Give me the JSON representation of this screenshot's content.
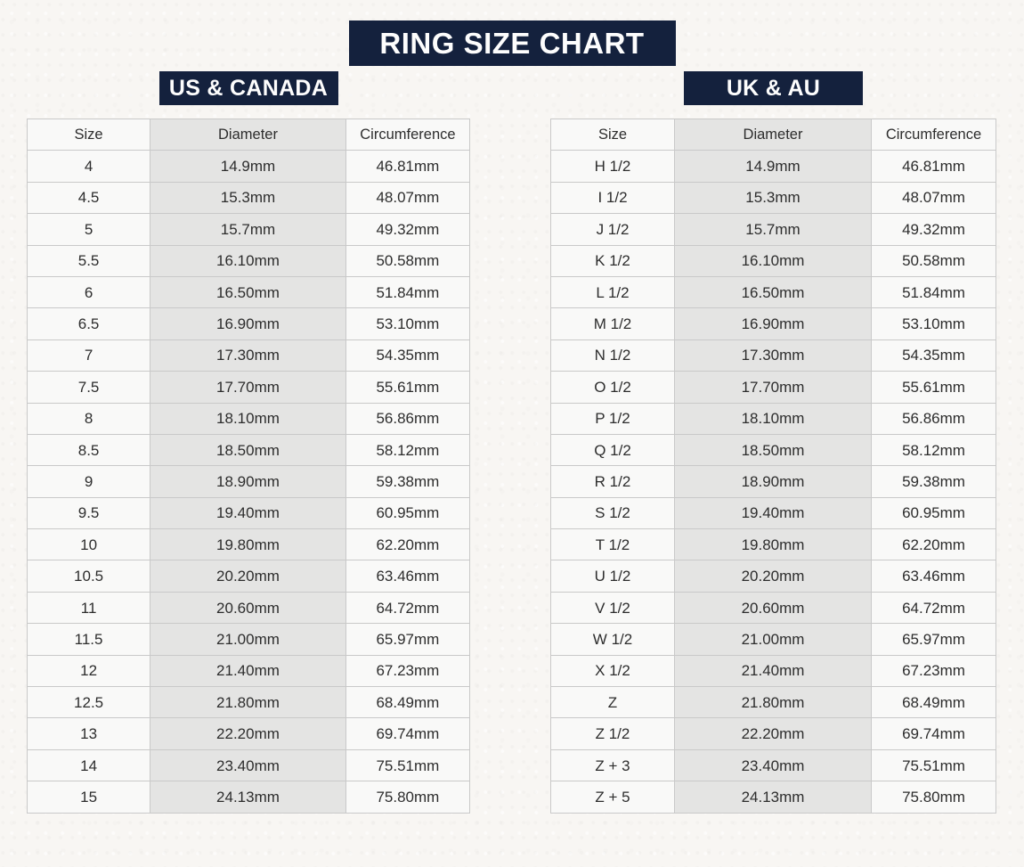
{
  "page": {
    "title": "RING SIZE CHART"
  },
  "theme": {
    "banner_color": "#14213d",
    "banner_text_color": "#fdfdfd",
    "cell_background": "#f9f9f8",
    "diameter_column_background": "#e4e4e3",
    "border_color": "#c9c9c9",
    "text_color": "#2d2d2d",
    "page_background": "#f8f6f3"
  },
  "tables": [
    {
      "region_label": "US & CANADA",
      "columns": [
        "Size",
        "Diameter",
        "Circumference"
      ],
      "rows": [
        [
          "4",
          "14.9mm",
          "46.81mm"
        ],
        [
          "4.5",
          "15.3mm",
          "48.07mm"
        ],
        [
          "5",
          "15.7mm",
          "49.32mm"
        ],
        [
          "5.5",
          "16.10mm",
          "50.58mm"
        ],
        [
          "6",
          "16.50mm",
          "51.84mm"
        ],
        [
          "6.5",
          "16.90mm",
          "53.10mm"
        ],
        [
          "7",
          "17.30mm",
          "54.35mm"
        ],
        [
          "7.5",
          "17.70mm",
          "55.61mm"
        ],
        [
          "8",
          "18.10mm",
          "56.86mm"
        ],
        [
          "8.5",
          "18.50mm",
          "58.12mm"
        ],
        [
          "9",
          "18.90mm",
          "59.38mm"
        ],
        [
          "9.5",
          "19.40mm",
          "60.95mm"
        ],
        [
          "10",
          "19.80mm",
          "62.20mm"
        ],
        [
          "10.5",
          "20.20mm",
          "63.46mm"
        ],
        [
          "11",
          "20.60mm",
          "64.72mm"
        ],
        [
          "11.5",
          "21.00mm",
          "65.97mm"
        ],
        [
          "12",
          "21.40mm",
          "67.23mm"
        ],
        [
          "12.5",
          "21.80mm",
          "68.49mm"
        ],
        [
          "13",
          "22.20mm",
          "69.74mm"
        ],
        [
          "14",
          "23.40mm",
          "75.51mm"
        ],
        [
          "15",
          "24.13mm",
          "75.80mm"
        ]
      ]
    },
    {
      "region_label": "UK & AU",
      "columns": [
        "Size",
        "Diameter",
        "Circumference"
      ],
      "rows": [
        [
          "H 1/2",
          "14.9mm",
          "46.81mm"
        ],
        [
          "I 1/2",
          "15.3mm",
          "48.07mm"
        ],
        [
          "J 1/2",
          "15.7mm",
          "49.32mm"
        ],
        [
          "K 1/2",
          "16.10mm",
          "50.58mm"
        ],
        [
          "L 1/2",
          "16.50mm",
          "51.84mm"
        ],
        [
          "M 1/2",
          "16.90mm",
          "53.10mm"
        ],
        [
          "N 1/2",
          "17.30mm",
          "54.35mm"
        ],
        [
          "O 1/2",
          "17.70mm",
          "55.61mm"
        ],
        [
          "P 1/2",
          "18.10mm",
          "56.86mm"
        ],
        [
          "Q 1/2",
          "18.50mm",
          "58.12mm"
        ],
        [
          "R 1/2",
          "18.90mm",
          "59.38mm"
        ],
        [
          "S 1/2",
          "19.40mm",
          "60.95mm"
        ],
        [
          "T 1/2",
          "19.80mm",
          "62.20mm"
        ],
        [
          "U 1/2",
          "20.20mm",
          "63.46mm"
        ],
        [
          "V 1/2",
          "20.60mm",
          "64.72mm"
        ],
        [
          "W 1/2",
          "21.00mm",
          "65.97mm"
        ],
        [
          "X 1/2",
          "21.40mm",
          "67.23mm"
        ],
        [
          "Z",
          "21.80mm",
          "68.49mm"
        ],
        [
          "Z 1/2",
          "22.20mm",
          "69.74mm"
        ],
        [
          "Z + 3",
          "23.40mm",
          "75.51mm"
        ],
        [
          "Z + 5",
          "24.13mm",
          "75.80mm"
        ]
      ]
    }
  ]
}
